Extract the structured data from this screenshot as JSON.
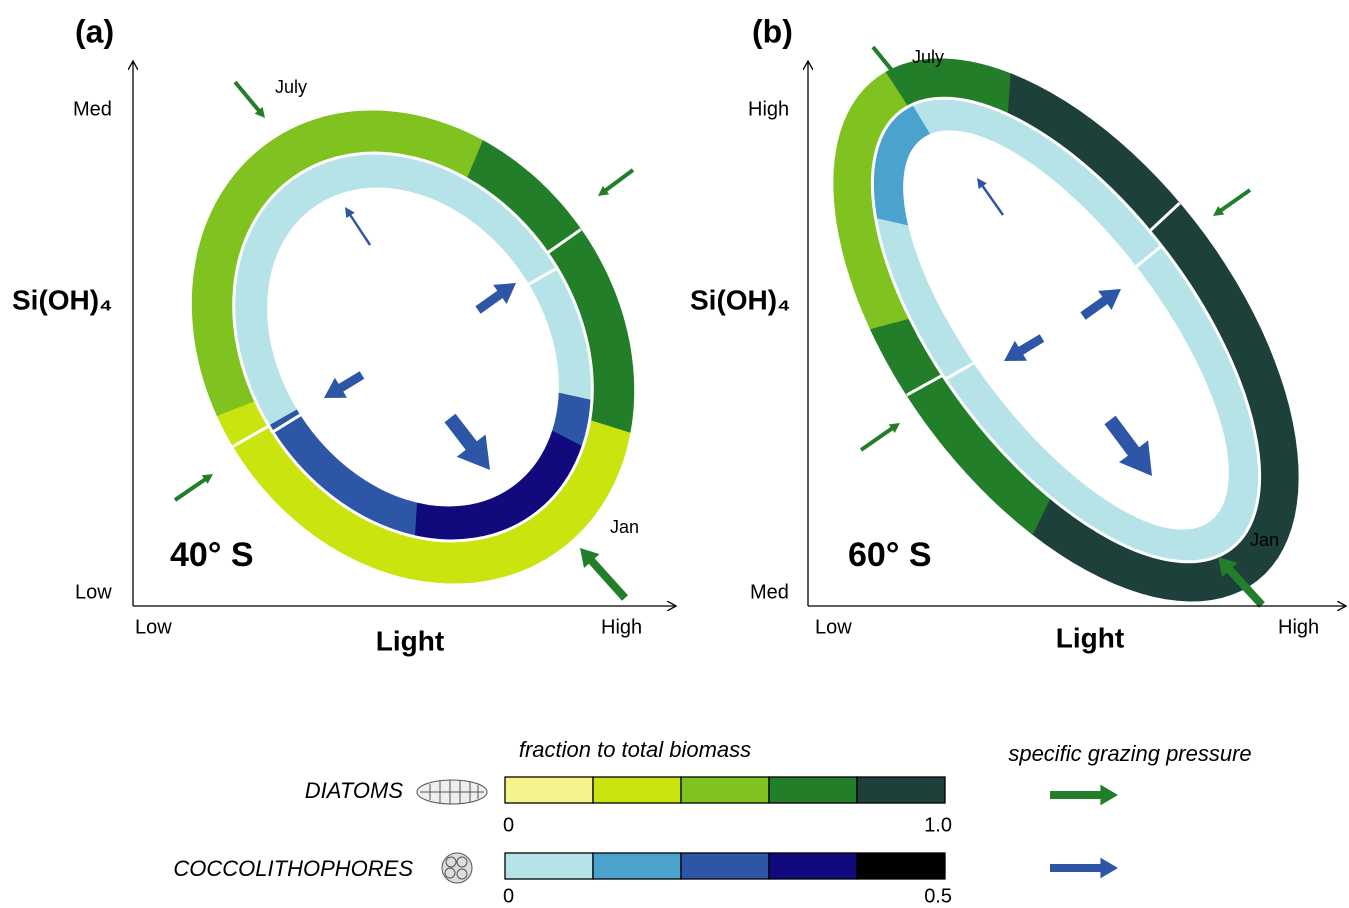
{
  "panels": [
    {
      "label": "(a)",
      "y_title": "Si(OH)₄",
      "y_low": "Low",
      "y_high": "Med",
      "x_title": "Light",
      "x_low": "Low",
      "x_high": "High",
      "latitude": "40° S",
      "month_top": "July",
      "month_bottom": "Jan"
    },
    {
      "label": "(b)",
      "y_title": "Si(OH)₄",
      "y_low": "Med",
      "y_high": "High",
      "x_title": "Light",
      "x_low": "Low",
      "x_high": "High",
      "latitude": "60° S",
      "month_top": "July",
      "month_bottom": "Jan"
    }
  ],
  "legend": {
    "fraction_title": "fraction to total biomass",
    "grazing_title": "specific grazing pressure",
    "rows": [
      {
        "name": "DIATOMS",
        "min": "0",
        "max": "1.0",
        "colors": [
          "#f3f58c",
          "#c9e40f",
          "#80c21f",
          "#237e2a",
          "#1e403a"
        ],
        "arrow_color": "#237e2a"
      },
      {
        "name": "COCCOLITHOPHORES",
        "min": "0",
        "max": "0.5",
        "colors": [
          "#b6e3e7",
          "#4ba3cd",
          "#2e56a7",
          "#110a7c",
          "#000000"
        ],
        "arrow_color": "#2e56a7"
      }
    ]
  }
}
